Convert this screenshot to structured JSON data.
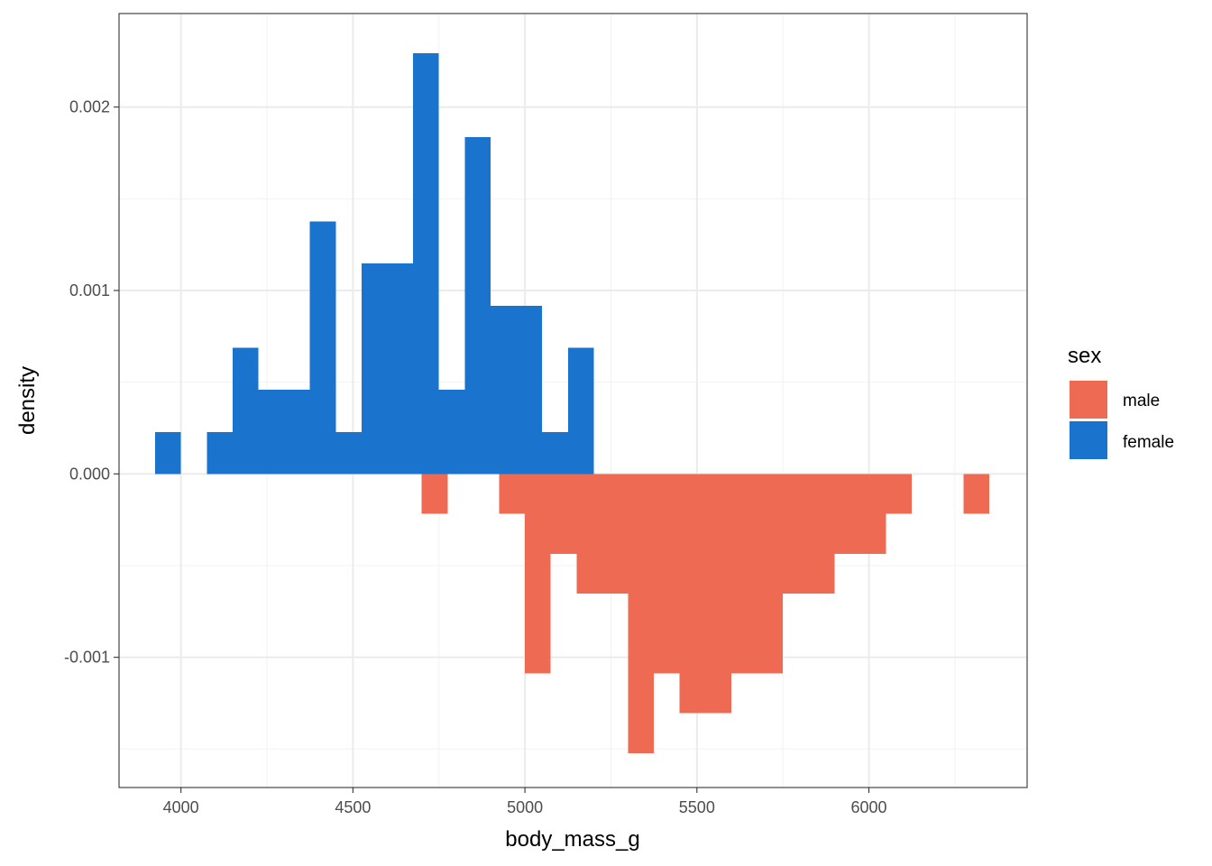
{
  "chart_data": {
    "type": "bar",
    "subtype": "mirrored-histogram",
    "xlabel": "body_mass_g",
    "ylabel": "density",
    "xlim": [
      3820,
      6460
    ],
    "ylim": [
      -0.00171,
      0.00251
    ],
    "x_ticks": [
      4000,
      4500,
      5000,
      5500,
      6000
    ],
    "x_tick_labels": [
      "4000",
      "4500",
      "5000",
      "5500",
      "6000"
    ],
    "y_ticks": [
      -0.001,
      0,
      0.001,
      0.002
    ],
    "y_tick_labels": [
      "-0.001",
      "0.000",
      "0.001",
      "0.002"
    ],
    "bin_width": 75,
    "grid": true,
    "legend": {
      "title": "sex",
      "position": "right"
    },
    "series": [
      {
        "name": "male",
        "color": "#EF6A52",
        "direction": "down",
        "bins": [
          {
            "x0": 4700,
            "x1": 4775,
            "y": -0.000217
          },
          {
            "x0": 4925,
            "x1": 5000,
            "y": -0.000217
          },
          {
            "x0": 5000,
            "x1": 5075,
            "y": -0.001087
          },
          {
            "x0": 5075,
            "x1": 5150,
            "y": -0.000435
          },
          {
            "x0": 5150,
            "x1": 5225,
            "y": -0.000652
          },
          {
            "x0": 5225,
            "x1": 5300,
            "y": -0.000652
          },
          {
            "x0": 5300,
            "x1": 5375,
            "y": -0.001522
          },
          {
            "x0": 5375,
            "x1": 5450,
            "y": -0.001087
          },
          {
            "x0": 5450,
            "x1": 5525,
            "y": -0.001304
          },
          {
            "x0": 5525,
            "x1": 5600,
            "y": -0.001304
          },
          {
            "x0": 5600,
            "x1": 5675,
            "y": -0.001087
          },
          {
            "x0": 5675,
            "x1": 5750,
            "y": -0.001087
          },
          {
            "x0": 5750,
            "x1": 5825,
            "y": -0.000652
          },
          {
            "x0": 5825,
            "x1": 5900,
            "y": -0.000652
          },
          {
            "x0": 5900,
            "x1": 5975,
            "y": -0.000435
          },
          {
            "x0": 5975,
            "x1": 6050,
            "y": -0.000435
          },
          {
            "x0": 6050,
            "x1": 6125,
            "y": -0.000217
          },
          {
            "x0": 6275,
            "x1": 6350,
            "y": -0.000217
          }
        ]
      },
      {
        "name": "female",
        "color": "#1A73CC",
        "direction": "up",
        "bins": [
          {
            "x0": 3925,
            "x1": 4000,
            "y": 0.000229
          },
          {
            "x0": 4075,
            "x1": 4150,
            "y": 0.000229
          },
          {
            "x0": 4150,
            "x1": 4225,
            "y": 0.000688
          },
          {
            "x0": 4225,
            "x1": 4300,
            "y": 0.000459
          },
          {
            "x0": 4300,
            "x1": 4375,
            "y": 0.000459
          },
          {
            "x0": 4375,
            "x1": 4450,
            "y": 0.001376
          },
          {
            "x0": 4450,
            "x1": 4525,
            "y": 0.000229
          },
          {
            "x0": 4525,
            "x1": 4600,
            "y": 0.001147
          },
          {
            "x0": 4600,
            "x1": 4675,
            "y": 0.001147
          },
          {
            "x0": 4675,
            "x1": 4750,
            "y": 0.002294
          },
          {
            "x0": 4750,
            "x1": 4825,
            "y": 0.000459
          },
          {
            "x0": 4825,
            "x1": 4900,
            "y": 0.001835
          },
          {
            "x0": 4900,
            "x1": 4975,
            "y": 0.000917
          },
          {
            "x0": 4975,
            "x1": 5050,
            "y": 0.000917
          },
          {
            "x0": 5050,
            "x1": 5125,
            "y": 0.000229
          },
          {
            "x0": 5125,
            "x1": 5200,
            "y": 0.000688
          }
        ]
      }
    ]
  }
}
